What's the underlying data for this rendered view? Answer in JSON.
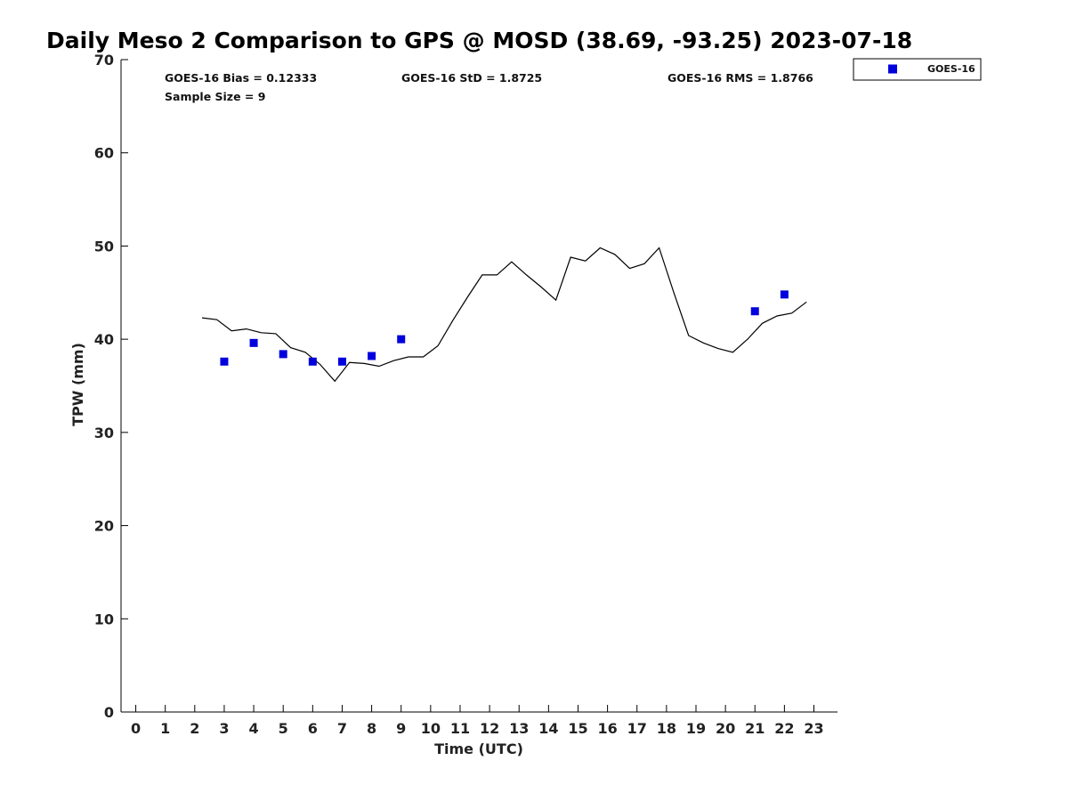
{
  "chart_data": {
    "type": "scatter",
    "title": "Daily Meso 2 Comparison to GPS @ MOSD (38.69, -93.25) 2023-07-18",
    "xlabel": "Time (UTC)",
    "ylabel": "TPW (mm)",
    "xlim": [
      -0.5,
      23.8
    ],
    "ylim": [
      0,
      70
    ],
    "xticks": [
      0,
      1,
      2,
      3,
      4,
      5,
      6,
      7,
      8,
      9,
      10,
      11,
      12,
      13,
      14,
      15,
      16,
      17,
      18,
      19,
      20,
      21,
      22,
      23
    ],
    "yticks": [
      0,
      10,
      20,
      30,
      40,
      50,
      60,
      70
    ],
    "grid": false,
    "legend_position": "top-right",
    "stats": {
      "bias": "GOES-16 Bias = 0.12333",
      "std": "GOES-16 StD = 1.8725",
      "rms": "GOES-16 RMS = 1.8766",
      "sample": "Sample Size = 9"
    },
    "series": [
      {
        "name": "GOES-16",
        "kind": "scatter",
        "color": "#0000dd",
        "marker": "square",
        "x": [
          3,
          4,
          5,
          6,
          7,
          8,
          9,
          21,
          22
        ],
        "y": [
          37.6,
          39.6,
          38.4,
          37.6,
          37.6,
          38.2,
          40.0,
          43.0,
          44.8
        ]
      },
      {
        "kind": "line",
        "color": "#000000",
        "x": [
          2.25,
          2.75,
          3.25,
          3.75,
          4.25,
          4.75,
          5.25,
          5.75,
          6.25,
          6.75,
          7.25,
          7.75,
          8.25,
          8.75,
          9.25,
          9.75,
          10.25,
          10.75,
          11.25,
          11.75,
          12.25,
          12.75,
          13.25,
          13.75,
          14.25,
          14.75,
          15.25,
          15.75,
          16.25,
          16.75,
          17.25,
          17.75,
          18.25,
          18.75,
          19.25,
          19.75,
          20.25,
          20.75,
          21.25,
          21.75,
          22.25,
          22.75
        ],
        "y": [
          42.3,
          42.1,
          40.9,
          41.1,
          40.7,
          40.6,
          39.1,
          38.6,
          37.3,
          35.5,
          37.5,
          37.4,
          37.1,
          37.7,
          38.1,
          38.1,
          39.3,
          42.0,
          44.5,
          46.9,
          46.9,
          48.3,
          46.9,
          45.6,
          44.2,
          48.8,
          48.4,
          49.8,
          49.1,
          47.6,
          48.1,
          49.8,
          45.0,
          40.4,
          39.6,
          39.0,
          38.6,
          40.0,
          41.7,
          42.5,
          42.8,
          44.0
        ]
      }
    ]
  }
}
